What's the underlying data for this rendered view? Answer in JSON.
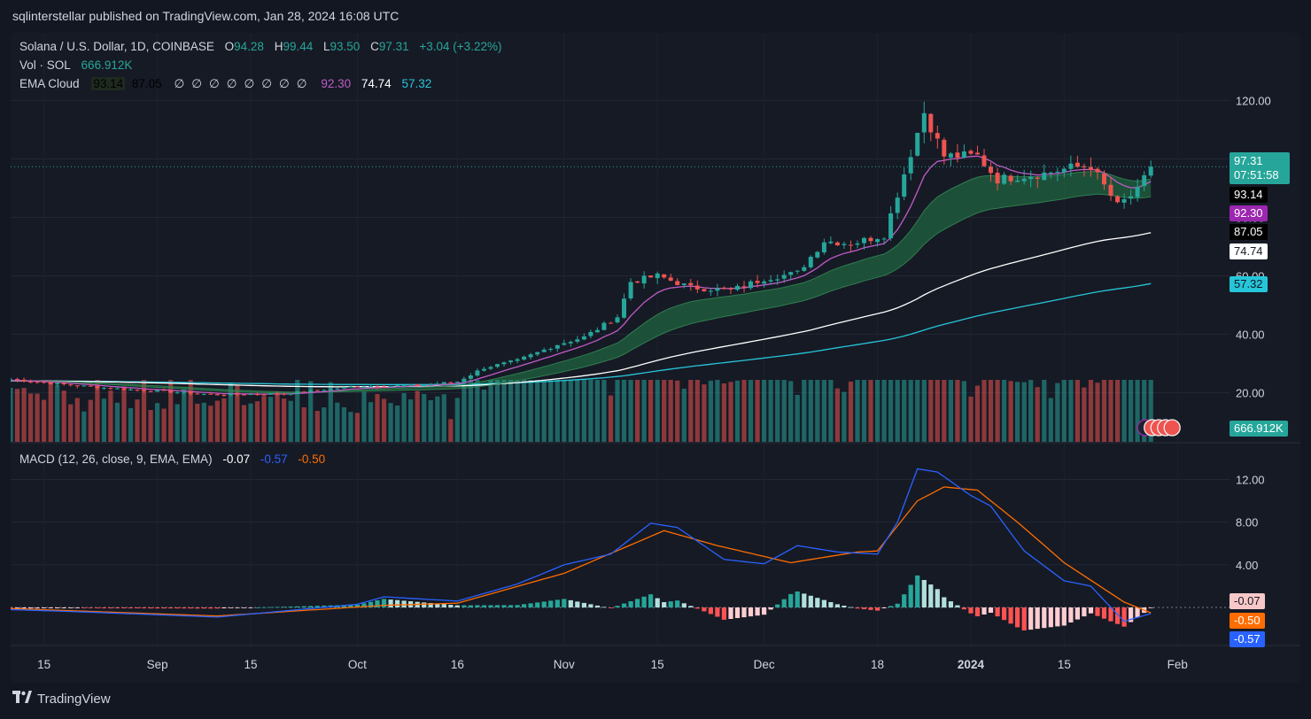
{
  "publisher": "sqlinterstellar published on TradingView.com, Jan 28, 2024 16:08 UTC",
  "footer": {
    "brand": "TradingView",
    "logo_icon": "tradingview-logo-icon"
  },
  "legend": {
    "symbol": "Solana / U.S. Dollar, 1D, COINBASE",
    "o_label": "O",
    "o_value": "94.28",
    "h_label": "H",
    "h_value": "99.44",
    "l_label": "L",
    "l_value": "93.50",
    "c_label": "C",
    "c_value": "97.31",
    "change": "+3.04 (+3.22%)",
    "vol_label": "Vol · SOL",
    "vol_value": "666.912K",
    "ema_label": "EMA Cloud",
    "ema_values": [
      "93.14",
      "87.05"
    ],
    "ema_na": [
      "∅",
      "∅",
      "∅",
      "∅",
      "∅",
      "∅",
      "∅",
      "∅"
    ],
    "ema_values2": [
      "92.30",
      "74.74",
      "57.32"
    ],
    "macd_label": "MACD (12, 26, close, 9, EMA, EMA)",
    "macd_values": [
      "-0.07",
      "-0.57",
      "-0.50"
    ]
  },
  "colors": {
    "up": "#26a69a",
    "down": "#ef5350",
    "cloud": "#1e5a3c",
    "ema_fast": "#c05cc6",
    "ema_mid": "#ffffff",
    "ema_slow": "#26c6da",
    "macd": "#2962ff",
    "signal": "#ff6d00"
  },
  "price_badges": [
    {
      "value": "97.31",
      "sub": "07:51:58",
      "bg": "#26a69a",
      "fg": "#ffffff"
    },
    {
      "value": "93.14",
      "bg": "#000000",
      "fg": "#ffffff"
    },
    {
      "value": "92.30",
      "bg": "#9c27b0",
      "fg": "#ffffff"
    },
    {
      "value": "87.05",
      "bg": "#000000",
      "fg": "#ffffff"
    },
    {
      "value": "74.74",
      "bg": "#ffffff",
      "fg": "#131722"
    },
    {
      "value": "57.32",
      "bg": "#26c6da",
      "fg": "#131722"
    }
  ],
  "volume_badge": "666.912K",
  "macd_badges": [
    {
      "value": "-0.07",
      "bg": "#f8c8c8",
      "fg": "#131722"
    },
    {
      "value": "-0.50",
      "bg": "#ff6d00",
      "fg": "#ffffff"
    },
    {
      "value": "-0.57",
      "bg": "#2962ff",
      "fg": "#ffffff"
    }
  ],
  "chart_data": [
    {
      "type": "line",
      "title": "Solana / U.S. Dollar, 1D, COINBASE",
      "y_ticks": [
        "20.00",
        "40.00",
        "60.00",
        "80.00",
        "100.00",
        "120.00"
      ],
      "ylim": [
        5,
        128
      ],
      "x_ticks": [
        "15",
        "Sep",
        "15",
        "Oct",
        "16",
        "Nov",
        "15",
        "Dec",
        "18",
        "2024",
        "15",
        "Feb"
      ],
      "x_tick_dates": [
        "2023-08-15",
        "2023-09-01",
        "2023-09-15",
        "2023-10-01",
        "2023-10-16",
        "2023-11-01",
        "2023-11-15",
        "2023-12-01",
        "2023-12-18",
        "2024-01-01",
        "2024-01-15",
        "2024-02-01"
      ],
      "x_range": [
        "2023-08-10",
        "2024-02-08"
      ],
      "last_date": "2024-01-28",
      "price_anchors": [
        [
          "2023-08-10",
          24.6
        ],
        [
          "2023-08-17",
          23.0
        ],
        [
          "2023-08-25",
          21.5
        ],
        [
          "2023-09-10",
          19.3
        ],
        [
          "2023-09-20",
          19.7
        ],
        [
          "2023-10-01",
          22.2
        ],
        [
          "2023-10-10",
          22.5
        ],
        [
          "2023-10-16",
          23.8
        ],
        [
          "2023-10-20",
          28.5
        ],
        [
          "2023-10-25",
          31.0
        ],
        [
          "2023-10-31",
          36.5
        ],
        [
          "2023-11-04",
          39.0
        ],
        [
          "2023-11-09",
          46.0
        ],
        [
          "2023-11-11",
          58.0
        ],
        [
          "2023-11-15",
          60.0
        ],
        [
          "2023-11-20",
          56.0
        ],
        [
          "2023-11-26",
          55.0
        ],
        [
          "2023-12-01",
          59.0
        ],
        [
          "2023-12-06",
          61.0
        ],
        [
          "2023-12-10",
          72.0
        ],
        [
          "2023-12-14",
          71.0
        ],
        [
          "2023-12-19",
          74.0
        ],
        [
          "2023-12-22",
          95.0
        ],
        [
          "2023-12-25",
          116.0
        ],
        [
          "2023-12-28",
          101.0
        ],
        [
          "2024-01-02",
          101.0
        ],
        [
          "2024-01-05",
          93.0
        ],
        [
          "2024-01-08",
          94.0
        ],
        [
          "2024-01-12",
          95.0
        ],
        [
          "2024-01-16",
          97.0
        ],
        [
          "2024-01-19",
          97.5
        ],
        [
          "2024-01-23",
          84.0
        ],
        [
          "2024-01-26",
          89.0
        ],
        [
          "2024-01-28",
          97.31
        ]
      ],
      "ema_series": [
        {
          "color_key": "ema_fast",
          "end_value": 92.3
        },
        {
          "color_key": "ema_mid",
          "end_value": 74.74
        },
        {
          "color_key": "ema_slow",
          "end_value": 57.32
        }
      ],
      "cloud_band": {
        "upper_end": 93.14,
        "lower_end": 87.05
      }
    },
    {
      "type": "bar",
      "title": "Vol · SOL",
      "last_value": "666.912K"
    },
    {
      "type": "line",
      "title": "MACD (12, 26, close, 9, EMA, EMA)",
      "y_ticks": [
        "4.00",
        "8.00",
        "12.00"
      ],
      "ylim": [
        -3.4,
        14.2
      ],
      "macd_anchors": [
        [
          "2023-08-10",
          -0.2
        ],
        [
          "2023-08-20",
          -0.4
        ],
        [
          "2023-09-10",
          -0.9
        ],
        [
          "2023-10-01",
          0.3
        ],
        [
          "2023-10-05",
          1.0
        ],
        [
          "2023-10-16",
          0.6
        ],
        [
          "2023-10-25",
          2.2
        ],
        [
          "2023-11-01",
          4.0
        ],
        [
          "2023-11-08",
          5.0
        ],
        [
          "2023-11-14",
          7.9
        ],
        [
          "2023-11-18",
          7.5
        ],
        [
          "2023-11-25",
          4.5
        ],
        [
          "2023-12-01",
          4.1
        ],
        [
          "2023-12-06",
          5.8
        ],
        [
          "2023-12-12",
          5.2
        ],
        [
          "2023-12-18",
          5.0
        ],
        [
          "2023-12-21",
          8.0
        ],
        [
          "2023-12-24",
          13.0
        ],
        [
          "2023-12-27",
          12.7
        ],
        [
          "2024-01-01",
          10.5
        ],
        [
          "2024-01-04",
          9.5
        ],
        [
          "2024-01-09",
          5.3
        ],
        [
          "2024-01-15",
          2.5
        ],
        [
          "2024-01-19",
          2.0
        ],
        [
          "2024-01-24",
          -1.3
        ],
        [
          "2024-01-28",
          -0.57
        ]
      ],
      "signal_anchors": [
        [
          "2023-08-10",
          -0.1
        ],
        [
          "2023-09-10",
          -0.8
        ],
        [
          "2023-10-05",
          0.2
        ],
        [
          "2023-10-16",
          0.4
        ],
        [
          "2023-11-01",
          3.2
        ],
        [
          "2023-11-16",
          7.2
        ],
        [
          "2023-11-24",
          5.8
        ],
        [
          "2023-12-05",
          4.2
        ],
        [
          "2023-12-15",
          5.2
        ],
        [
          "2023-12-18",
          5.3
        ],
        [
          "2023-12-24",
          10.0
        ],
        [
          "2023-12-28",
          11.3
        ],
        [
          "2024-01-02",
          11.0
        ],
        [
          "2024-01-08",
          8.0
        ],
        [
          "2024-01-15",
          4.2
        ],
        [
          "2024-01-24",
          0.5
        ],
        [
          "2024-01-28",
          -0.5
        ]
      ],
      "histogram_last": -0.07
    }
  ]
}
